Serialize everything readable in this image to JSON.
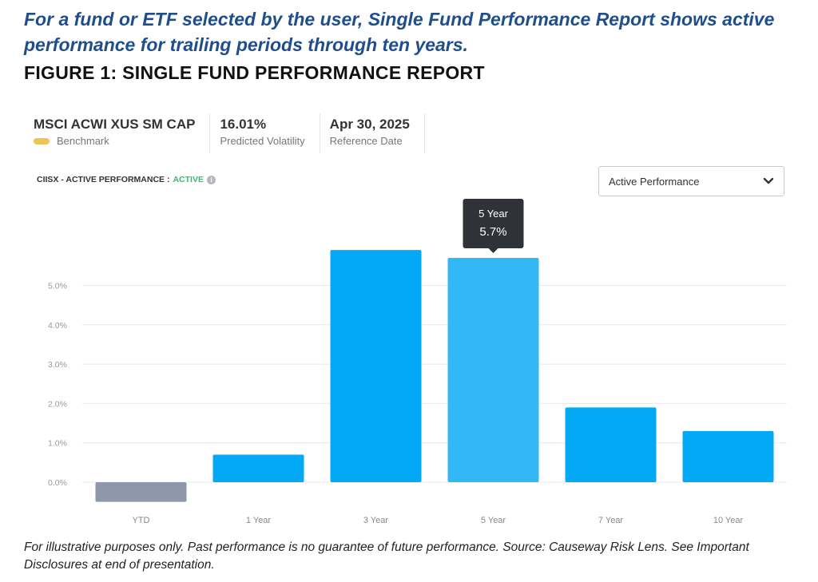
{
  "header": {
    "intro": "For a fund or ETF selected by the user, Single Fund Performance Report shows active performance for trailing periods through ten years.",
    "figure_title": "FIGURE 1: SINGLE FUND PERFORMANCE REPORT"
  },
  "stats": {
    "benchmark_value": "MSCI ACWI XUS SM CAP",
    "benchmark_label": "Benchmark",
    "volatility_value": "16.01%",
    "volatility_label": "Predicted Volatility",
    "date_value": "Apr 30, 2025",
    "date_label": "Reference Date"
  },
  "chart_header": {
    "prefix": "CIISX - ACTIVE PERFORMANCE :",
    "status": "ACTIVE",
    "info_icon": "info-icon"
  },
  "dropdown": {
    "selected": "Active Performance",
    "icon": "chevron-down-icon"
  },
  "chart_data": {
    "type": "bar",
    "categories": [
      "YTD",
      "1 Year",
      "3 Year",
      "5 Year",
      "7 Year",
      "10 Year"
    ],
    "values": [
      -0.5,
      0.7,
      5.9,
      5.7,
      1.9,
      1.3
    ],
    "y_ticks": [
      "0.0%",
      "1.0%",
      "2.0%",
      "3.0%",
      "4.0%",
      "5.0%"
    ],
    "ylim": [
      -0.5,
      6.0
    ],
    "grid": true,
    "colors": {
      "positive": "#03a9f4",
      "negative": "#8e98aa",
      "highlight": "#33b8f6"
    },
    "highlight_index": 3,
    "tooltip": {
      "title": "5 Year",
      "value": "5.7%"
    }
  },
  "footnote": "For illustrative purposes only. Past performance is no guarantee of future performance. Source: Causeway Risk Lens. See Important Disclosures at end of presentation."
}
